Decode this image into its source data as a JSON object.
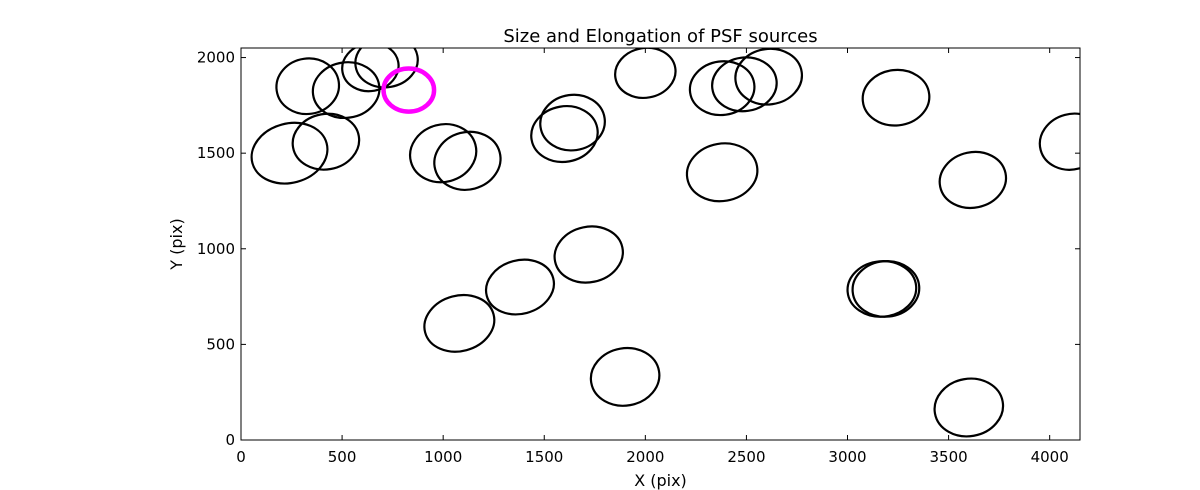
{
  "chart_data": {
    "type": "scatter",
    "title": "Size and Elongation of PSF sources",
    "xlabel": "X (pix)",
    "ylabel": "Y (pix)",
    "xlim": [
      0,
      4150
    ],
    "ylim": [
      0,
      2050
    ],
    "xticks": [
      0,
      500,
      1000,
      1500,
      2000,
      2500,
      3000,
      3500,
      4000
    ],
    "yticks": [
      0,
      500,
      1000,
      1500,
      2000
    ],
    "xtick_labels": [
      "0",
      "500",
      "1000",
      "1500",
      "2000",
      "2500",
      "3000",
      "3500",
      "4000"
    ],
    "ytick_labels": [
      "0",
      "500",
      "1000",
      "1500",
      "2000"
    ],
    "grid": false,
    "series": [
      {
        "marker": "ellipse",
        "color": "#000000",
        "points": [
          {
            "x": 240,
            "y": 1500,
            "w": 380,
            "h": 310,
            "angle": -15
          },
          {
            "x": 420,
            "y": 1560,
            "w": 330,
            "h": 290,
            "angle": -10
          },
          {
            "x": 330,
            "y": 1850,
            "w": 310,
            "h": 290,
            "angle": -8
          },
          {
            "x": 520,
            "y": 1830,
            "w": 330,
            "h": 290,
            "angle": -8
          },
          {
            "x": 640,
            "y": 1950,
            "w": 280,
            "h": 250,
            "angle": -10
          },
          {
            "x": 720,
            "y": 1980,
            "w": 310,
            "h": 270,
            "angle": -10
          },
          {
            "x": 1000,
            "y": 1500,
            "w": 330,
            "h": 300,
            "angle": -15
          },
          {
            "x": 1120,
            "y": 1460,
            "w": 330,
            "h": 300,
            "angle": -15
          },
          {
            "x": 1600,
            "y": 1600,
            "w": 330,
            "h": 290,
            "angle": -10
          },
          {
            "x": 1640,
            "y": 1660,
            "w": 320,
            "h": 290,
            "angle": -8
          },
          {
            "x": 2000,
            "y": 1920,
            "w": 300,
            "h": 260,
            "angle": -10
          },
          {
            "x": 2380,
            "y": 1840,
            "w": 320,
            "h": 280,
            "angle": -8
          },
          {
            "x": 2490,
            "y": 1860,
            "w": 320,
            "h": 280,
            "angle": -8
          },
          {
            "x": 2610,
            "y": 1900,
            "w": 330,
            "h": 290,
            "angle": -8
          },
          {
            "x": 2380,
            "y": 1400,
            "w": 350,
            "h": 300,
            "angle": -10
          },
          {
            "x": 3240,
            "y": 1790,
            "w": 330,
            "h": 290,
            "angle": -6
          },
          {
            "x": 3620,
            "y": 1360,
            "w": 330,
            "h": 290,
            "angle": -12
          },
          {
            "x": 4110,
            "y": 1560,
            "w": 320,
            "h": 290,
            "angle": -15
          },
          {
            "x": 1080,
            "y": 610,
            "w": 350,
            "h": 290,
            "angle": -15
          },
          {
            "x": 1380,
            "y": 800,
            "w": 340,
            "h": 280,
            "angle": -15
          },
          {
            "x": 1720,
            "y": 970,
            "w": 340,
            "h": 290,
            "angle": -12
          },
          {
            "x": 1900,
            "y": 330,
            "w": 340,
            "h": 300,
            "angle": -10
          },
          {
            "x": 3170,
            "y": 790,
            "w": 340,
            "h": 290,
            "angle": -5
          },
          {
            "x": 3190,
            "y": 790,
            "w": 330,
            "h": 290,
            "angle": -5
          },
          {
            "x": 3600,
            "y": 170,
            "w": 340,
            "h": 300,
            "angle": -10
          }
        ]
      },
      {
        "marker": "ellipse",
        "color": "#ff00ff",
        "points": [
          {
            "x": 830,
            "y": 1830,
            "w": 250,
            "h": 225,
            "angle": 0
          }
        ]
      }
    ]
  }
}
